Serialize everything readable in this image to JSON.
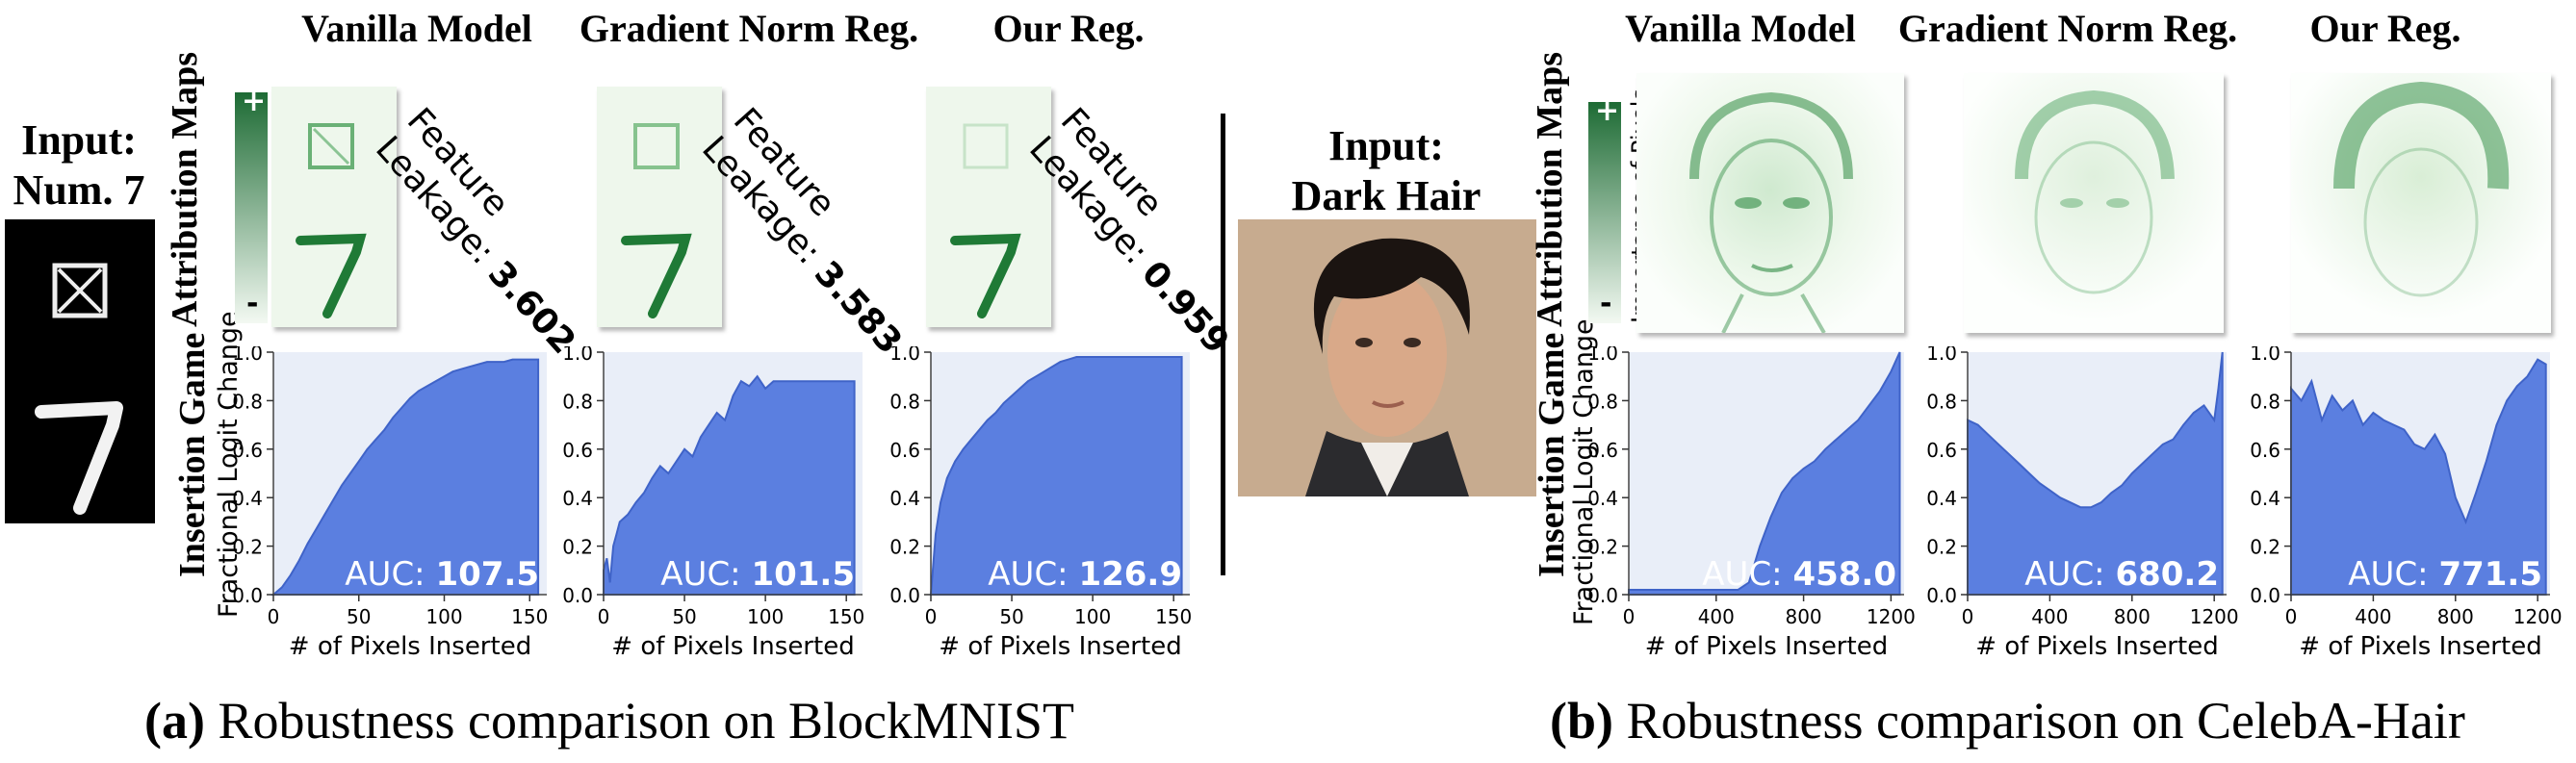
{
  "columns": [
    "Vanilla Model",
    "Gradient Norm Reg.",
    "Our Reg."
  ],
  "row_labels": {
    "attribution": "Attribution Maps",
    "insertion": "Insertion Game"
  },
  "colorbar": {
    "plus": "+",
    "minus": "-",
    "label": "Importance of Pixels"
  },
  "y_axis_label": "Fractional Logit Change",
  "x_axis_label": "# of Pixels Inserted",
  "panel_a": {
    "input_label_1": "Input:",
    "input_label_2": "Num. 7",
    "leakage_word_1": "Feature",
    "leakage_word_2": "Leakage:",
    "leakage_values": [
      "3.602",
      "3.583",
      "0.959"
    ],
    "caption_tag": "(a)",
    "caption_text": " Robustness comparison on BlockMNIST"
  },
  "panel_b": {
    "input_label_1": "Input:",
    "input_label_2": "Dark Hair",
    "caption_tag": "(b)",
    "caption_text": " Robustness comparison on CelebA-Hair"
  },
  "colors": {
    "fill": "#5b7fe0",
    "plot_bg": "#e9eef8",
    "attribution_green": "#2a8a3e"
  },
  "chart_data": [
    {
      "type": "area",
      "panel": "a",
      "title": "Vanilla Model",
      "auc_label": "AUC:",
      "auc": "107.5",
      "xlim": [
        0,
        160
      ],
      "ylim": [
        0,
        1.0
      ],
      "xticks": [
        0,
        50,
        100,
        150
      ],
      "yticks": [
        0.0,
        0.2,
        0.4,
        0.6,
        0.8,
        1.0
      ],
      "x": [
        0,
        5,
        10,
        15,
        20,
        25,
        30,
        35,
        40,
        45,
        50,
        55,
        60,
        65,
        70,
        75,
        80,
        85,
        90,
        95,
        100,
        105,
        110,
        115,
        120,
        125,
        130,
        135,
        140,
        145,
        150,
        155
      ],
      "y": [
        0.0,
        0.03,
        0.08,
        0.14,
        0.21,
        0.27,
        0.33,
        0.39,
        0.45,
        0.5,
        0.55,
        0.6,
        0.64,
        0.68,
        0.73,
        0.77,
        0.81,
        0.84,
        0.86,
        0.88,
        0.9,
        0.92,
        0.93,
        0.94,
        0.95,
        0.96,
        0.96,
        0.96,
        0.97,
        0.97,
        0.97,
        0.97
      ]
    },
    {
      "type": "area",
      "panel": "a",
      "title": "Gradient Norm Reg.",
      "auc_label": "AUC:",
      "auc": "101.5",
      "xlim": [
        0,
        160
      ],
      "ylim": [
        0,
        1.0
      ],
      "xticks": [
        0,
        50,
        100,
        150
      ],
      "yticks": [
        0.0,
        0.2,
        0.4,
        0.6,
        0.8,
        1.0
      ],
      "x": [
        0,
        2,
        4,
        6,
        8,
        10,
        15,
        20,
        25,
        30,
        35,
        40,
        45,
        50,
        55,
        60,
        65,
        70,
        75,
        80,
        85,
        90,
        95,
        100,
        105,
        110,
        115,
        120,
        125,
        130,
        135,
        140,
        145,
        150,
        155
      ],
      "y": [
        0.1,
        0.15,
        0.05,
        0.2,
        0.25,
        0.3,
        0.33,
        0.38,
        0.42,
        0.48,
        0.53,
        0.5,
        0.55,
        0.6,
        0.57,
        0.65,
        0.7,
        0.75,
        0.72,
        0.82,
        0.88,
        0.86,
        0.9,
        0.85,
        0.88,
        0.88,
        0.88,
        0.88,
        0.88,
        0.88,
        0.88,
        0.88,
        0.88,
        0.88,
        0.88
      ]
    },
    {
      "type": "area",
      "panel": "a",
      "title": "Our Reg.",
      "auc_label": "AUC:",
      "auc": "126.9",
      "xlim": [
        0,
        160
      ],
      "ylim": [
        0,
        1.0
      ],
      "xticks": [
        0,
        50,
        100,
        150
      ],
      "yticks": [
        0.0,
        0.2,
        0.4,
        0.6,
        0.8,
        1.0
      ],
      "x": [
        0,
        3,
        6,
        10,
        15,
        20,
        25,
        30,
        35,
        40,
        45,
        50,
        55,
        60,
        65,
        70,
        75,
        80,
        85,
        90,
        95,
        100,
        110,
        120,
        130,
        140,
        150,
        155
      ],
      "y": [
        0.0,
        0.25,
        0.38,
        0.48,
        0.55,
        0.6,
        0.64,
        0.68,
        0.72,
        0.75,
        0.79,
        0.82,
        0.85,
        0.88,
        0.9,
        0.92,
        0.94,
        0.96,
        0.97,
        0.98,
        0.98,
        0.98,
        0.98,
        0.98,
        0.98,
        0.98,
        0.98,
        0.98
      ]
    },
    {
      "type": "area",
      "panel": "b",
      "title": "Vanilla Model",
      "auc_label": "AUC:",
      "auc": "458.0",
      "xlim": [
        0,
        1260
      ],
      "ylim": [
        0,
        1.0
      ],
      "xticks": [
        0,
        400,
        800,
        1200
      ],
      "yticks": [
        0.0,
        0.2,
        0.4,
        0.6,
        0.8,
        1.0
      ],
      "x": [
        0,
        100,
        200,
        300,
        400,
        500,
        550,
        600,
        650,
        700,
        750,
        800,
        850,
        900,
        950,
        1000,
        1050,
        1100,
        1150,
        1200,
        1240
      ],
      "y": [
        0.02,
        0.02,
        0.02,
        0.02,
        0.02,
        0.02,
        0.05,
        0.2,
        0.32,
        0.42,
        0.48,
        0.52,
        0.55,
        0.6,
        0.64,
        0.68,
        0.72,
        0.78,
        0.84,
        0.92,
        1.0
      ]
    },
    {
      "type": "area",
      "panel": "b",
      "title": "Gradient Norm Reg.",
      "auc_label": "AUC:",
      "auc": "680.2",
      "xlim": [
        0,
        1260
      ],
      "ylim": [
        0,
        1.0
      ],
      "xticks": [
        0,
        400,
        800,
        1200
      ],
      "yticks": [
        0.0,
        0.2,
        0.4,
        0.6,
        0.8,
        1.0
      ],
      "x": [
        0,
        50,
        100,
        150,
        200,
        250,
        300,
        350,
        400,
        450,
        500,
        550,
        600,
        650,
        700,
        750,
        800,
        850,
        900,
        950,
        1000,
        1050,
        1100,
        1150,
        1200,
        1220,
        1240
      ],
      "y": [
        0.72,
        0.7,
        0.66,
        0.62,
        0.58,
        0.54,
        0.5,
        0.46,
        0.43,
        0.4,
        0.38,
        0.36,
        0.36,
        0.38,
        0.42,
        0.45,
        0.5,
        0.54,
        0.58,
        0.62,
        0.64,
        0.7,
        0.75,
        0.78,
        0.72,
        0.85,
        1.0
      ]
    },
    {
      "type": "area",
      "panel": "b",
      "title": "Our Reg.",
      "auc_label": "AUC:",
      "auc": "771.5",
      "xlim": [
        0,
        1260
      ],
      "ylim": [
        0,
        1.0
      ],
      "xticks": [
        0,
        400,
        800,
        1200
      ],
      "yticks": [
        0.0,
        0.2,
        0.4,
        0.6,
        0.8,
        1.0
      ],
      "x": [
        0,
        50,
        100,
        150,
        200,
        250,
        300,
        350,
        400,
        450,
        500,
        550,
        600,
        650,
        700,
        750,
        800,
        850,
        900,
        950,
        1000,
        1050,
        1100,
        1150,
        1200,
        1240
      ],
      "y": [
        0.85,
        0.8,
        0.88,
        0.72,
        0.82,
        0.76,
        0.8,
        0.7,
        0.75,
        0.72,
        0.7,
        0.68,
        0.62,
        0.6,
        0.66,
        0.58,
        0.4,
        0.3,
        0.42,
        0.55,
        0.7,
        0.8,
        0.86,
        0.9,
        0.97,
        0.95
      ]
    }
  ]
}
